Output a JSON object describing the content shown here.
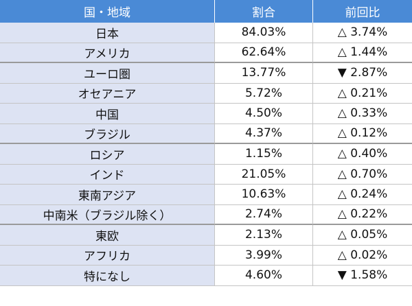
{
  "table": {
    "header": [
      "国・地域",
      "割合",
      "前回比"
    ],
    "rows": [
      [
        "日本",
        "84.03%",
        "△ 3.74%"
      ],
      [
        "アメリカ",
        "62.64%",
        "△ 1.44%"
      ],
      [
        "ユーロ圏",
        "13.77%",
        "▼ 2.87%"
      ],
      [
        "オセアニア",
        "5.72%",
        "△ 0.21%"
      ],
      [
        "中国",
        "4.50%",
        "△ 0.33%"
      ],
      [
        "ブラジル",
        "4.37%",
        "△ 0.12%"
      ],
      [
        "ロシア",
        "1.15%",
        "△ 0.40%"
      ],
      [
        "インド",
        "21.05%",
        "△ 0.70%"
      ],
      [
        "東南アジア",
        "10.63%",
        "△ 0.24%"
      ],
      [
        "中南米（ブラジル除く）",
        "2.74%",
        "△ 0.22%"
      ],
      [
        "東欧",
        "2.13%",
        "△ 0.05%"
      ],
      [
        "アフリカ",
        "3.99%",
        "△ 0.02%"
      ],
      [
        "特になし",
        "4.60%",
        "▼ 1.58%"
      ]
    ]
  }
}
